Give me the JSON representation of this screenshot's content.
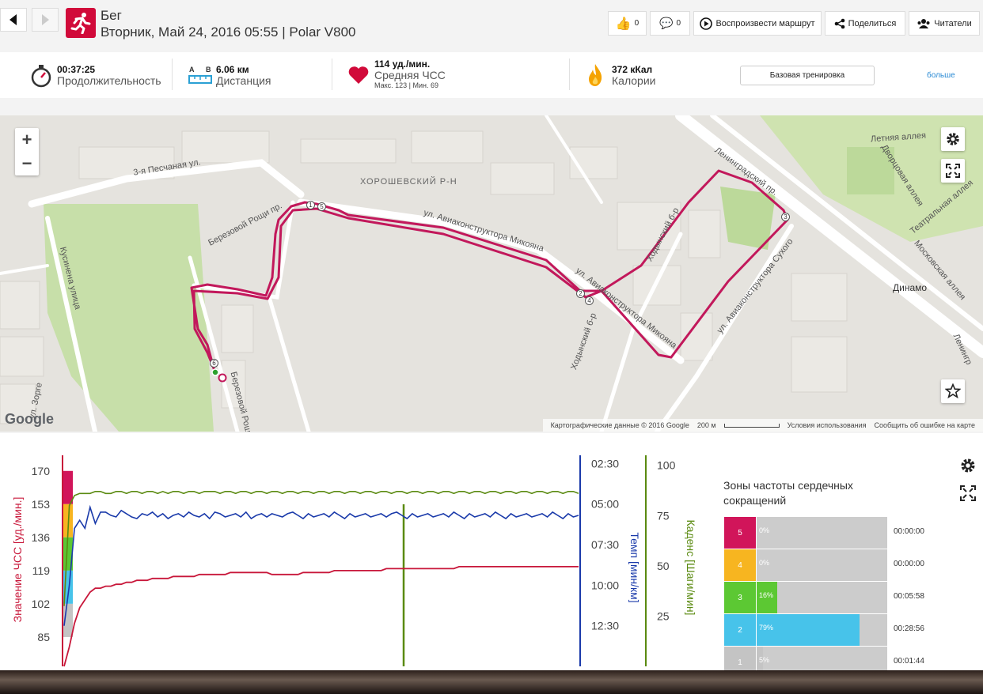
{
  "header": {
    "sport": "Бег",
    "date_line": "Вторник, Май 24, 2016 05:55 | Polar V800",
    "likes": "0",
    "comments": "0",
    "replay_label": "Воспроизвести маршрут",
    "share_label": "Поделиться",
    "readers_label": "Читатели"
  },
  "stats": {
    "duration_value": "00:37:25",
    "duration_label": "Продолжительность",
    "distance_a": "A",
    "distance_b": "B",
    "distance_value": "6.06 км",
    "distance_label": "Дистанция",
    "hr_value": "114 уд./мин.",
    "hr_label": "Средняя ЧСС",
    "hr_sub": "Макс. 123 | Мин. 69",
    "cal_value": "372 кКал",
    "cal_label": "Калории",
    "training_button": "Базовая тренировка",
    "more_link": "больше"
  },
  "map": {
    "labels": [
      "3-я Песчаная ул.",
      "ХОРОШЕВСКИЙ Р-Н",
      "ул. Авиаконструктора Микояна",
      "ул. Авиаконструктора Микояна",
      "Ленинградский пр.",
      "Летняя аллея",
      "Дворцовая аллея",
      "Театральная аллея",
      "Московская аллея",
      "Динамо",
      "Кусиненa улица",
      "Березовой Рощи пр.",
      "Ходынский б-р",
      "Ходынский б-р",
      "ул. Авиаконструктора Сухого",
      "ул. Зорге",
      "Ленингр",
      "Березовой Рощи"
    ],
    "markers": [
      "1",
      "5",
      "2",
      "4",
      "3",
      "6"
    ],
    "attribution": "Картографические данные © 2016 Google",
    "scale": "200 м",
    "terms": "Условия использования",
    "report": "Сообщить об ошибке на карте",
    "google": "Google",
    "zoom_in": "+",
    "zoom_out": "−"
  },
  "chart_data": {
    "type": "line",
    "ylabel_hr": "Значение ЧСС [уд./мин.]",
    "ylabel_pace": "Темп [мин/км]",
    "ylabel_cadence": "Каденс [Шаги/мин]",
    "hr_ticks": [
      "170",
      "153",
      "136",
      "119",
      "102",
      "85"
    ],
    "pace_ticks": [
      "02:30",
      "05:00",
      "07:30",
      "10:00",
      "12:30"
    ],
    "cadence_ticks": [
      "100",
      "75",
      "50",
      "25"
    ],
    "hr_range": [
      70,
      178
    ],
    "cadence_range": [
      0,
      105
    ],
    "pace_range_min": [
      2.0,
      15.0
    ],
    "series": [
      {
        "name": "ЧСС",
        "color": "#c8173a",
        "values": [
          70,
          80,
          92,
          100,
          104,
          108,
          110,
          110,
          111,
          111,
          112,
          112,
          113,
          113,
          114,
          114,
          114,
          115,
          115,
          115,
          115,
          116,
          116,
          116,
          116,
          116,
          117,
          117,
          117,
          117,
          117,
          117,
          118,
          118,
          118,
          118,
          118,
          118,
          118,
          118,
          117,
          117,
          117,
          117,
          117,
          117,
          118,
          118,
          118,
          118,
          118,
          118,
          119,
          119,
          119,
          119,
          119,
          119,
          119,
          119,
          119,
          119,
          120,
          120,
          120,
          120,
          120,
          120,
          120,
          120,
          120,
          120,
          120,
          120,
          120,
          120,
          121,
          121,
          121,
          121,
          121,
          121,
          121,
          121,
          121,
          121,
          121,
          121,
          121,
          121,
          121,
          121,
          121,
          121,
          121,
          121,
          121,
          121,
          121,
          121
        ]
      },
      {
        "name": "Темп",
        "color": "#1a3aaa",
        "values": [
          12.5,
          10,
          6.5,
          6,
          6.5,
          5.2,
          6.2,
          5.5,
          5.5,
          5.7,
          5.8,
          5.4,
          5.6,
          5.8,
          5.9,
          5.6,
          5.7,
          5.5,
          5.8,
          5.6,
          5.9,
          5.7,
          5.6,
          5.8,
          5.5,
          5.7,
          5.8,
          5.6,
          5.9,
          5.5,
          5.6,
          5.8,
          5.7,
          5.6,
          5.8,
          5.5,
          5.9,
          5.7,
          5.6,
          5.8,
          5.6,
          5.7,
          5.8,
          5.6,
          5.5,
          5.7,
          5.9,
          5.6,
          5.8,
          5.7,
          5.6,
          5.8,
          5.5,
          5.7,
          5.9,
          5.6,
          5.8,
          5.7,
          5.6,
          5.8,
          5.7,
          5.6,
          5.8,
          5.6,
          5.5,
          5.7,
          5.9,
          5.6,
          5.8,
          5.7,
          5.6,
          5.8,
          5.7,
          5.6,
          5.8,
          5.5,
          5.7,
          5.9,
          5.6,
          5.8,
          5.7,
          5.6,
          5.8,
          5.5,
          5.7,
          5.9,
          5.6,
          5.8,
          5.7,
          5.6,
          5.8,
          5.7,
          5.6,
          5.8,
          5.5,
          5.7,
          5.9,
          5.6,
          5.8,
          5.7
        ]
      },
      {
        "name": "Каденс",
        "color": "#5a8a10",
        "values": [
          30,
          80,
          85,
          86,
          86,
          86,
          87,
          87,
          86,
          86,
          87,
          87,
          86,
          87,
          87,
          86,
          87,
          87,
          86,
          87,
          86,
          87,
          87,
          86,
          87,
          87,
          86,
          87,
          87,
          87,
          86,
          87,
          87,
          86,
          87,
          87,
          86,
          87,
          87,
          86,
          87,
          87,
          86,
          87,
          87,
          86,
          87,
          87,
          86,
          87,
          87,
          86,
          87,
          87,
          86,
          87,
          87,
          86,
          87,
          87,
          86,
          87,
          87,
          86,
          87,
          87,
          86,
          87,
          87,
          86,
          87,
          87,
          86,
          87,
          87,
          86,
          87,
          87,
          86,
          87,
          87,
          86,
          87,
          87,
          86,
          87,
          87,
          86,
          87,
          87,
          86,
          87,
          87,
          86,
          87,
          87,
          86,
          87,
          87,
          86
        ]
      }
    ]
  },
  "zones": {
    "title": "Зоны частоты сердечных сокращений",
    "items": [
      {
        "zone": "5",
        "pct": "0%",
        "fraction": 0.0,
        "time": "00:00:00",
        "color": "#d1155a"
      },
      {
        "zone": "4",
        "pct": "0%",
        "fraction": 0.0,
        "time": "00:00:00",
        "color": "#f7b520"
      },
      {
        "zone": "3",
        "pct": "16%",
        "fraction": 0.16,
        "time": "00:05:58",
        "color": "#5cc833"
      },
      {
        "zone": "2",
        "pct": "79%",
        "fraction": 0.79,
        "time": "00:28:56",
        "color": "#47c3ea"
      },
      {
        "zone": "1",
        "pct": "5%",
        "fraction": 0.05,
        "time": "00:01:44",
        "color": "#c4c4c4"
      }
    ]
  }
}
